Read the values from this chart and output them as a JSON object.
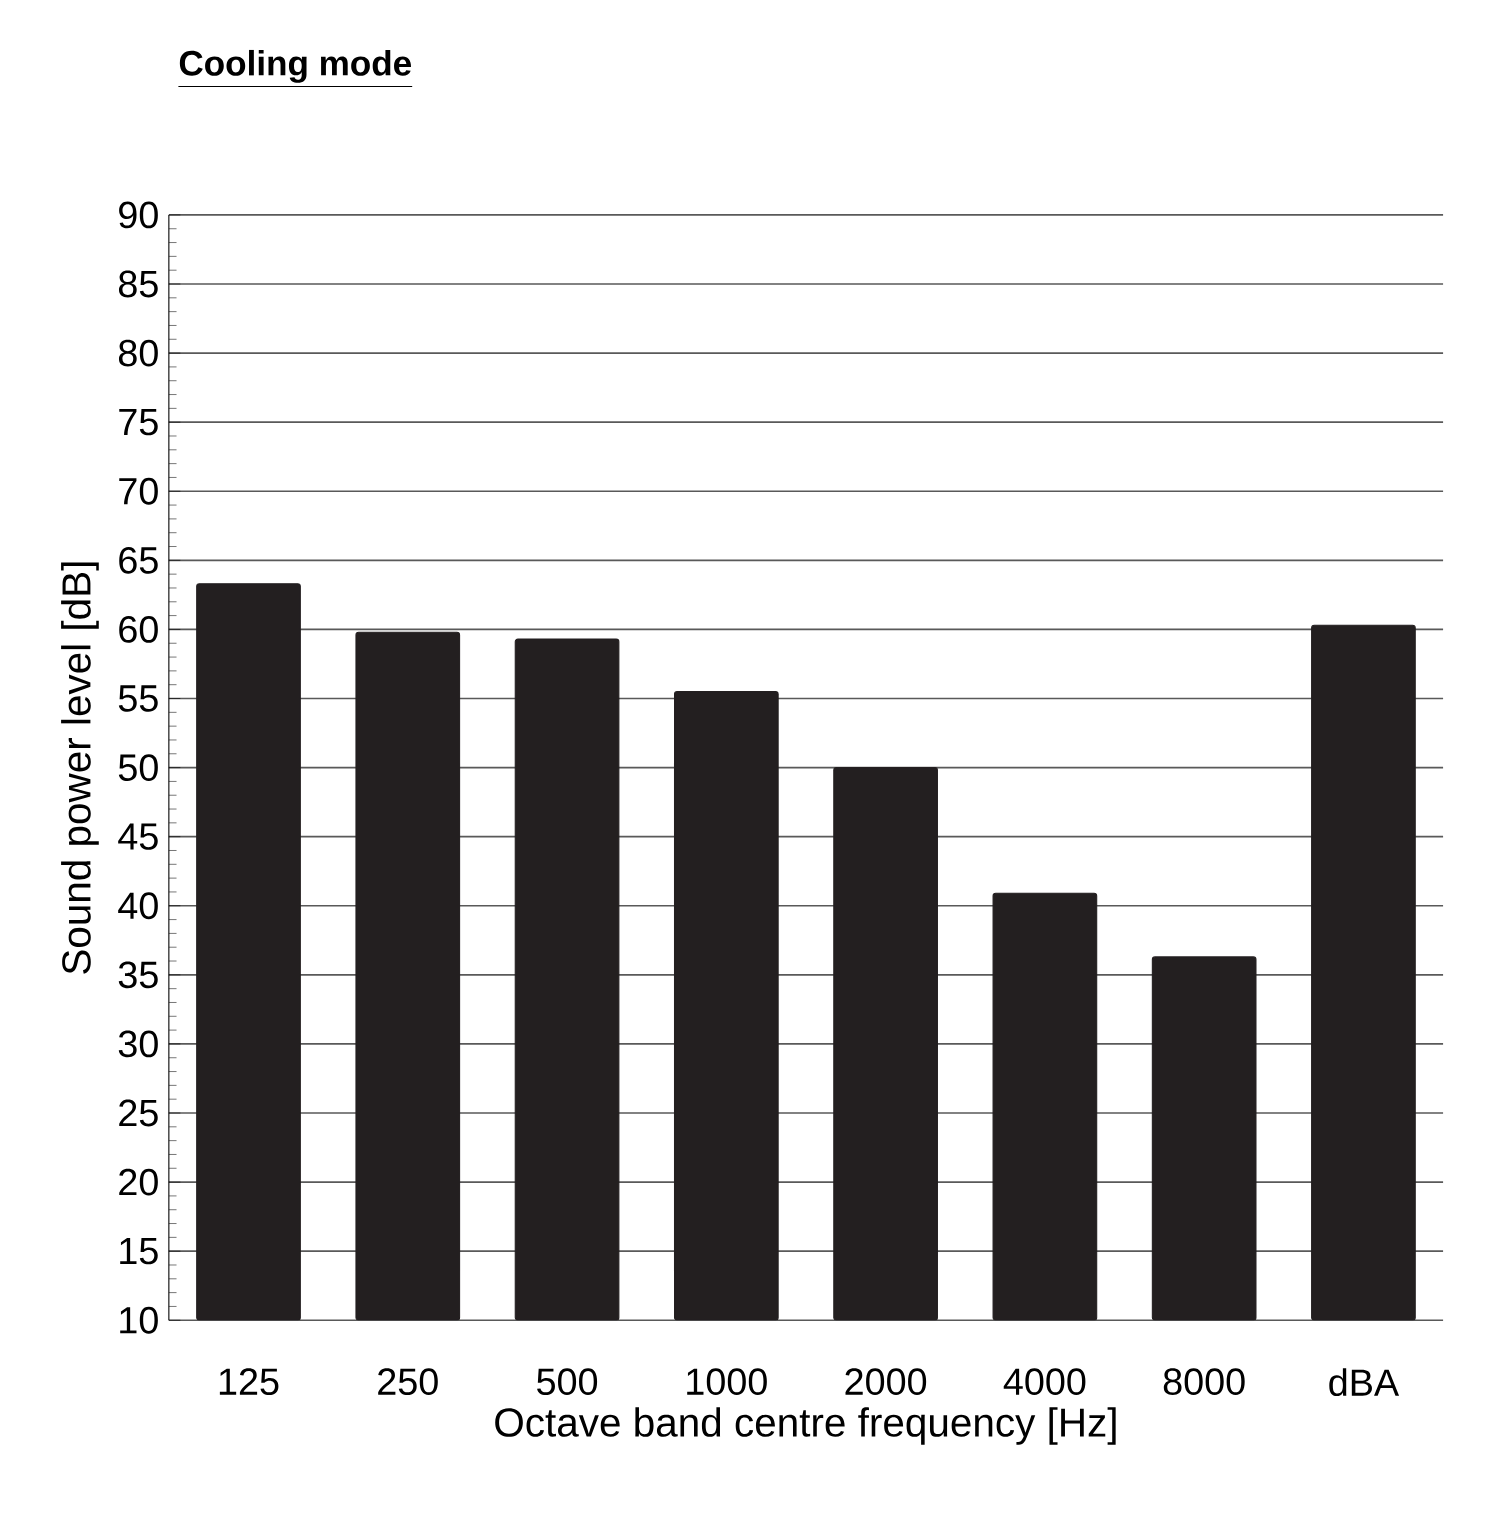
{
  "chart_data": {
    "type": "bar",
    "title": "Cooling mode",
    "xlabel": "Octave band centre frequency [Hz]",
    "ylabel": "Sound power level [dB]",
    "categories": [
      "125",
      "250",
      "500",
      "1000",
      "2000",
      "4000",
      "8000",
      "dBA"
    ],
    "values": [
      63.3,
      59.8,
      59.3,
      55.5,
      50.0,
      40.9,
      36.3,
      60.3
    ],
    "color": "#231f20",
    "ylim": [
      10,
      90
    ],
    "yticks": [
      10,
      15,
      20,
      25,
      30,
      35,
      40,
      45,
      50,
      55,
      60,
      65,
      70,
      75,
      80,
      85,
      90
    ],
    "grid": "y"
  }
}
